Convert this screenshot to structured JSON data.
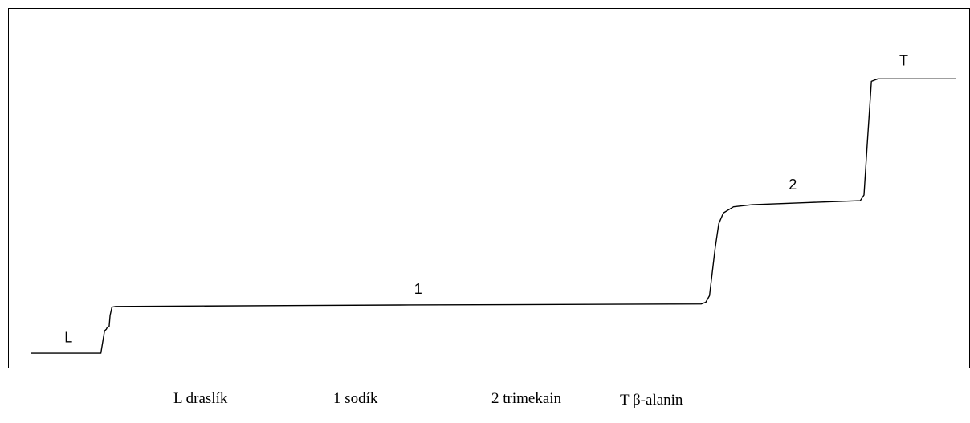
{
  "chart_data": {
    "type": "line",
    "title": "",
    "xlabel": "",
    "ylabel": "",
    "grid": false,
    "x_range": [
      0,
      100
    ],
    "y_range": [
      0,
      100
    ],
    "series": [
      {
        "points": [
          [
            0,
            4
          ],
          [
            7.6,
            4
          ],
          [
            8.0,
            10.2
          ],
          [
            8.2,
            10.7
          ],
          [
            8.3,
            11.2
          ],
          [
            8.5,
            11.4
          ],
          [
            8.6,
            14.5
          ],
          [
            8.8,
            16.8
          ],
          [
            9.2,
            17.0
          ],
          [
            40.0,
            17.4
          ],
          [
            72.5,
            17.7
          ],
          [
            73.0,
            18.2
          ],
          [
            73.4,
            20.0
          ],
          [
            74.0,
            33.0
          ],
          [
            74.4,
            40.0
          ],
          [
            74.9,
            43.0
          ],
          [
            76.0,
            44.7
          ],
          [
            78.0,
            45.3
          ],
          [
            84.0,
            45.9
          ],
          [
            89.7,
            46.4
          ],
          [
            90.1,
            48.0
          ],
          [
            90.4,
            60.0
          ],
          [
            90.9,
            79.6
          ],
          [
            91.6,
            80.3
          ],
          [
            100,
            80.3
          ]
        ],
        "color": "#000000"
      }
    ],
    "zone_labels": [
      {
        "text": "L",
        "x": 4.1,
        "y": 7
      },
      {
        "text": "1",
        "x": 41.9,
        "y": 20.5
      },
      {
        "text": "2",
        "x": 82.4,
        "y": 49.5
      },
      {
        "text": "T",
        "x": 94.4,
        "y": 84
      }
    ]
  },
  "legend": {
    "items": [
      "L draslík",
      "1 sodík",
      "2 trimekain",
      "T β-alanin"
    ]
  }
}
